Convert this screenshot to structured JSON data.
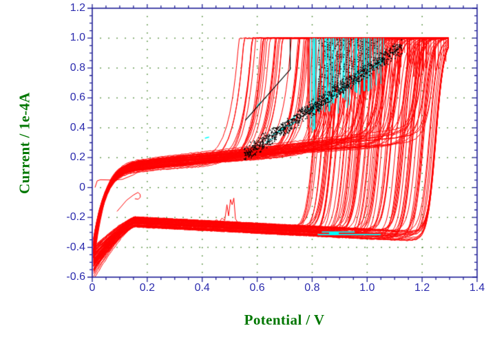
{
  "figure": {
    "kind": "cyclic-voltammogram-plot",
    "background": "#FFFFFF"
  },
  "colors": {
    "axis_border": "#1E1E96",
    "tick_label": "#2B2BAE",
    "axis_title": "#007700",
    "grid_dot": "#3A7D1E",
    "series_red": "#FF0000",
    "series_cyan": "#00FFFF",
    "series_black": "#000000"
  },
  "chart_data": {
    "type": "line",
    "title": "",
    "xlabel": "Potential / V",
    "ylabel": "Current / 1e-4A",
    "xlim": [
      0,
      1.4
    ],
    "ylim": [
      -0.6,
      1.2
    ],
    "x_major_ticks": [
      0,
      0.2,
      0.4,
      0.6,
      0.8,
      1.0,
      1.2,
      1.4
    ],
    "x_tick_labels": [
      "0",
      "0.2",
      "0.4",
      "0.6",
      "0.8",
      "1.0",
      "1.2",
      "1.4"
    ],
    "y_major_ticks": [
      1.2,
      1.0,
      0.8,
      0.6,
      0.4,
      0.2,
      0,
      -0.2,
      -0.4,
      -0.6
    ],
    "y_tick_labels": [
      "1.2",
      "1.0",
      "0.8",
      "0.6",
      "0.4",
      "0.2",
      "0",
      "-0.2",
      "-0.4",
      "-0.6"
    ],
    "minor_tick_step": 0.05,
    "grid": {
      "style": "dotted",
      "at": "major",
      "spacing_px": 12
    },
    "legend": "none",
    "clip_current": 1.0,
    "seed": 7,
    "description": "Approximately 90 overlaid CV cycles (red): anodic plateau at +0.13 to +0.35e-4 A drifting up with potential; anodic oxidation onset shifts from ~0.45 V (first cycles) to ~1.2 V (last cycles); anodic current clipped at +1.0e-4 A up to the ~1.30 V vertex; return sweeps fall to a cathodic plateau of -0.22 to -0.32e-4 A and dive to -0.6e-4 A in the hydrogen region below 0.15 V. A cyan cycle shows vertical oxidation spikes between ~0.79 and ~1.06 V plus a flat cathodic segment at -0.31e-4 A (0.82-1.05 V). A black dotted noise band runs diagonally from (0.55, 0.25) to (1.12, 0.93) with a solid black segment rising to a vertical at 0.72 V.",
    "series": [
      {
        "name": "red-cv-cycles",
        "color": "#FF0000",
        "cycles": 88,
        "params": {
          "x_start": 0.005,
          "x_vertex": 1.295,
          "step": 0.005,
          "plateau_base": 0.13,
          "plateau_gain": 0.055,
          "plateau_jitter": 0.02,
          "rise_tau": 0.042,
          "drift_base": 0.16,
          "drift_jitter": 0.05,
          "onset_first": 0.42,
          "onset_last": 1.18,
          "onset_jitter": 0.02,
          "exp_amp": 0.018,
          "exp_width_first": 0.034,
          "exp_width_last": 0.022,
          "fall_first": 0.8,
          "fall_gain": 0.5,
          "fall_cap": 1.25,
          "fall_width": 0.015,
          "cath_intercept": -0.215,
          "cath_slope": -0.095,
          "cath_jitter": 0.07,
          "dive_start": 0.155,
          "dive_pow": 1.3,
          "dive_k_base": 2.4,
          "dive_k_gain": 1.6,
          "dive_k_jitter": 0.5,
          "noise": 0.003
        }
      },
      {
        "name": "red-oxidation-spikes",
        "color": "#FF0000",
        "count": 58,
        "params": {
          "x_min": 0.782,
          "x_max": 1.285,
          "top": 1.0,
          "bottom_offset": 0.05,
          "bottom_rand": 0.2
        }
      },
      {
        "name": "cyan-current-cycle",
        "color": "#00FFFF",
        "spikes": {
          "count": 32,
          "x_min": 0.792,
          "x_max": 1.058,
          "top": 1.0,
          "bottom_rand": 0.14
        },
        "band_dashes": {
          "count": 14,
          "x_min": 0.56,
          "x_max": 1.04,
          "len": 0.03
        },
        "bottom_segments": [
          [
            [
              0.82,
              -0.315
            ],
            [
              1.05,
              -0.315
            ]
          ],
          [
            [
              0.835,
              -0.298
            ],
            [
              0.955,
              -0.298
            ]
          ]
        ],
        "blob": {
          "x": 0.862,
          "y": -0.307,
          "w": 0.035,
          "h": 0.022
        },
        "line_dashes": [
          [
            [
              0.598,
              0.54
            ],
            [
              0.614,
              0.572
            ]
          ],
          [
            [
              0.41,
              0.33
            ],
            [
              0.425,
              0.338
            ]
          ]
        ]
      },
      {
        "name": "black-dotted-noise",
        "color": "#000000",
        "band": {
          "x_min": 0.553,
          "x_max": 1.128,
          "anchor_x": 0.674,
          "anchor_y": 0.37,
          "slope": 1.27,
          "y_max": 0.97,
          "spread": 0.06,
          "dots": 1050,
          "dot_size": 1.6
        },
        "columns": {
          "count": 22,
          "x_min": 0.825,
          "x_max": 1.035,
          "top": 0.99,
          "step": 0.016,
          "keep": 0.55
        },
        "solid_line": [
          [
            0.557,
            0.45
          ],
          [
            0.72,
            0.79
          ],
          [
            0.72,
            0.995
          ]
        ]
      }
    ],
    "artifacts": {
      "noise_spike_red": [
        [
          0.435,
          -0.24
        ],
        [
          0.452,
          -0.215
        ],
        [
          0.462,
          -0.23
        ],
        [
          0.472,
          -0.205
        ],
        [
          0.482,
          -0.22
        ],
        [
          0.49,
          -0.115
        ],
        [
          0.496,
          -0.19
        ],
        [
          0.503,
          -0.08
        ],
        [
          0.509,
          -0.115
        ],
        [
          0.515,
          -0.07
        ],
        [
          0.521,
          -0.21
        ],
        [
          0.53,
          -0.235
        ]
      ],
      "low_flat_line_red": [
        [
          0.01,
          0.0
        ],
        [
          0.018,
          0.045
        ],
        [
          0.03,
          0.052
        ],
        [
          0.07,
          0.05
        ],
        [
          0.11,
          0.055
        ],
        [
          0.15,
          0.085
        ],
        [
          0.19,
          0.13
        ]
      ],
      "hook_red": [
        [
          0.09,
          -0.16
        ],
        [
          0.125,
          -0.085
        ],
        [
          0.15,
          -0.05
        ],
        [
          0.166,
          -0.033
        ],
        [
          0.174,
          -0.045
        ],
        [
          0.175,
          -0.065
        ],
        [
          0.167,
          -0.078
        ],
        [
          0.155,
          -0.075
        ]
      ]
    }
  }
}
